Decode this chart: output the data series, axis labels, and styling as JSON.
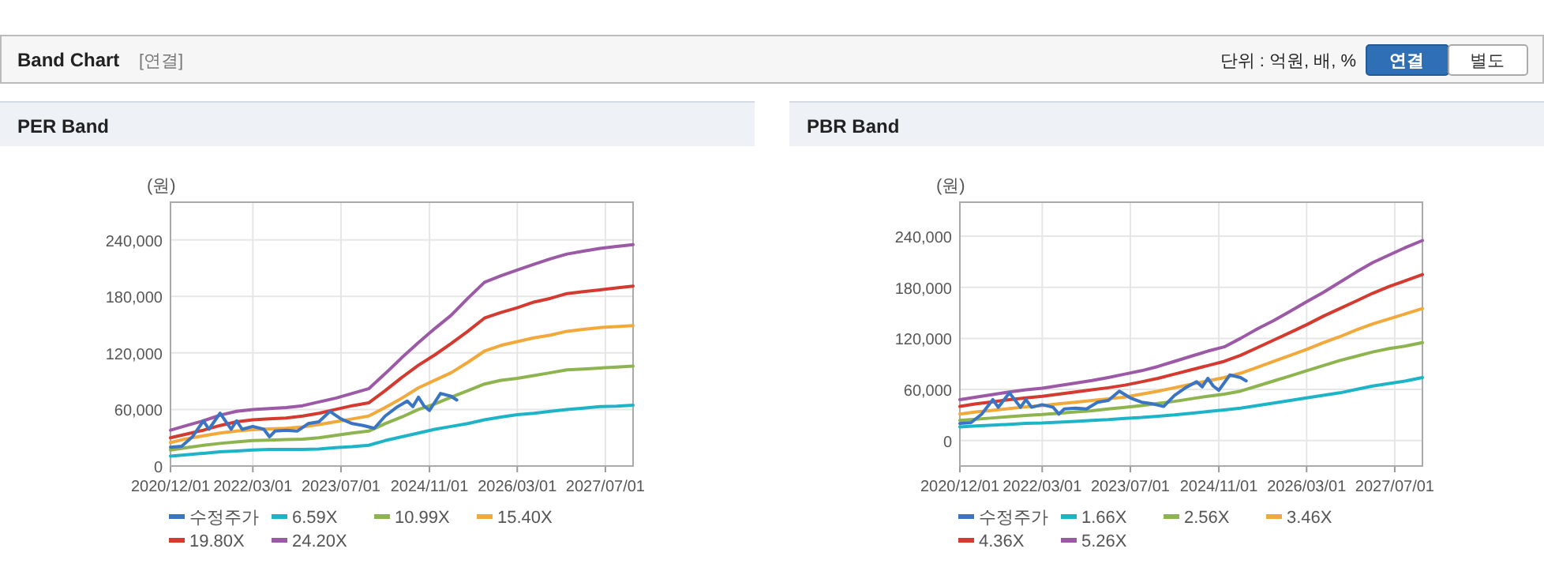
{
  "chart_data": [
    {
      "type": "other",
      "title": "Band Chart",
      "annotations": [
        "[연결]",
        "단위 : 억원, 배, %",
        "연결",
        "별도"
      ]
    },
    {
      "type": "line",
      "title": "PER Band",
      "ylabel": "(원)",
      "xlim": [
        "2020-12-01",
        "2027-12-01"
      ],
      "ylim": [
        0,
        280000
      ],
      "xticks": [
        {
          "value": "2020-12-01",
          "label": "2020/12/01"
        },
        {
          "value": "2022-03-01",
          "label": "2022/03/01"
        },
        {
          "value": "2023-07-01",
          "label": "2023/07/01"
        },
        {
          "value": "2024-11-01",
          "label": "2024/11/01"
        },
        {
          "value": "2026-03-01",
          "label": "2026/03/01"
        },
        {
          "value": "2027-07-01",
          "label": "2027/07/01"
        }
      ],
      "yticks": [
        0,
        {
          "value": 60000,
          "label": "60,000"
        },
        {
          "value": 120000,
          "label": "120,000"
        },
        {
          "value": 180000,
          "label": "180,000"
        },
        {
          "value": 240000,
          "label": "240,000"
        }
      ],
      "grid": true,
      "legend": "bottom",
      "marker": "none",
      "line_style": "solid",
      "x": [
        "2020-12",
        "2021-03",
        "2021-06",
        "2021-09",
        "2021-12",
        "2022-03",
        "2022-06",
        "2022-09",
        "2022-12",
        "2023-03",
        "2023-06",
        "2023-09",
        "2023-12",
        "2024-03",
        "2024-06",
        "2024-09",
        "2024-12",
        "2025-03",
        "2025-06",
        "2025-09",
        "2025-12",
        "2026-03",
        "2026-06",
        "2026-09",
        "2026-12",
        "2027-03",
        "2027-06",
        "2027-09",
        "2027-12"
      ],
      "series": [
        {
          "name": "수정주가",
          "color": "#3a75c4",
          "x": [
            "2020-12",
            "2021-02",
            "2021-04",
            "2021-06",
            "2021-07",
            "2021-09",
            "2021-11",
            "2021-12",
            "2022-01",
            "2022-03",
            "2022-05",
            "2022-06",
            "2022-07",
            "2022-09",
            "2022-11",
            "2023-01",
            "2023-03",
            "2023-05",
            "2023-07",
            "2023-09",
            "2023-11",
            "2024-01",
            "2024-03",
            "2024-05",
            "2024-07",
            "2024-08",
            "2024-09",
            "2024-10",
            "2024-11",
            "2025-01",
            "2025-03",
            "2025-04"
          ],
          "values": [
            20000,
            21000,
            31000,
            48000,
            39000,
            56000,
            39000,
            48000,
            39000,
            42000,
            39000,
            31000,
            37000,
            38000,
            37000,
            45000,
            47000,
            58000,
            50000,
            45000,
            43000,
            40000,
            53000,
            62000,
            69000,
            63000,
            73000,
            64000,
            59000,
            77000,
            74000,
            70000
          ]
        },
        {
          "name": "6.59X",
          "color": "#1eb4c8",
          "values": [
            10500,
            12000,
            13500,
            15000,
            16000,
            17000,
            17500,
            17500,
            17500,
            18000,
            19500,
            20500,
            22000,
            27000,
            31000,
            35000,
            39000,
            42000,
            45000,
            49000,
            52000,
            54500,
            56000,
            58000,
            60000,
            61500,
            63000,
            63500,
            64500
          ]
        },
        {
          "name": "10.99X",
          "color": "#8db44f",
          "values": [
            17000,
            19500,
            22000,
            24000,
            25500,
            27000,
            27500,
            28000,
            28500,
            30000,
            32500,
            35000,
            37000,
            45000,
            52000,
            60000,
            66000,
            73000,
            80000,
            87000,
            91000,
            93000,
            96000,
            99000,
            102000,
            103000,
            104000,
            105000,
            106000
          ]
        },
        {
          "name": "15.40X",
          "color": "#f2a93b",
          "values": [
            25000,
            29000,
            32000,
            35000,
            37000,
            38500,
            39500,
            40000,
            41500,
            44000,
            47000,
            50000,
            53000,
            62000,
            72000,
            83000,
            91000,
            99000,
            110000,
            122000,
            128000,
            132000,
            136000,
            139000,
            143000,
            145000,
            147000,
            148000,
            149000
          ]
        },
        {
          "name": "19.80X",
          "color": "#d43a2f",
          "values": [
            30000,
            34000,
            38000,
            43000,
            47000,
            49000,
            50000,
            51000,
            53000,
            56000,
            60000,
            64000,
            67000,
            80000,
            94000,
            107000,
            118000,
            130000,
            143000,
            157000,
            163000,
            168000,
            174000,
            178000,
            183000,
            185000,
            187000,
            189000,
            191000
          ]
        },
        {
          "name": "24.20X",
          "color": "#9b59a6",
          "values": [
            38000,
            43000,
            48000,
            54000,
            58000,
            60000,
            61000,
            62000,
            64000,
            68000,
            72000,
            77000,
            82000,
            98000,
            115000,
            131000,
            146000,
            160000,
            178000,
            195000,
            202000,
            208000,
            214000,
            220000,
            225000,
            228000,
            231000,
            233000,
            235000
          ]
        }
      ]
    },
    {
      "type": "line",
      "title": "PBR Band",
      "ylabel": "(원)",
      "xlim": [
        "2020-12-01",
        "2027-12-01"
      ],
      "ylim": [
        -30000,
        280000
      ],
      "xticks": [
        {
          "value": "2020-12-01",
          "label": "2020/12/01"
        },
        {
          "value": "2022-03-01",
          "label": "2022/03/01"
        },
        {
          "value": "2023-07-01",
          "label": "2023/07/01"
        },
        {
          "value": "2024-11-01",
          "label": "2024/11/01"
        },
        {
          "value": "2026-03-01",
          "label": "2026/03/01"
        },
        {
          "value": "2027-07-01",
          "label": "2027/07/01"
        }
      ],
      "yticks": [
        0,
        {
          "value": 60000,
          "label": "60,000"
        },
        {
          "value": 120000,
          "label": "120,000"
        },
        {
          "value": 180000,
          "label": "180,000"
        },
        {
          "value": 240000,
          "label": "240,000"
        }
      ],
      "grid": true,
      "legend": "bottom",
      "marker": "none",
      "line_style": "solid",
      "x": [
        "2020-12",
        "2021-03",
        "2021-06",
        "2021-09",
        "2021-12",
        "2022-03",
        "2022-06",
        "2022-09",
        "2022-12",
        "2023-03",
        "2023-06",
        "2023-09",
        "2023-12",
        "2024-03",
        "2024-06",
        "2024-09",
        "2024-12",
        "2025-03",
        "2025-06",
        "2025-09",
        "2025-12",
        "2026-03",
        "2026-06",
        "2026-09",
        "2026-12",
        "2027-03",
        "2027-06",
        "2027-09",
        "2027-12"
      ],
      "series": [
        {
          "name": "수정주가",
          "color": "#3a75c4",
          "x": [
            "2020-12",
            "2021-02",
            "2021-04",
            "2021-06",
            "2021-07",
            "2021-09",
            "2021-11",
            "2021-12",
            "2022-01",
            "2022-03",
            "2022-05",
            "2022-06",
            "2022-07",
            "2022-09",
            "2022-11",
            "2023-01",
            "2023-03",
            "2023-05",
            "2023-07",
            "2023-09",
            "2023-11",
            "2024-01",
            "2024-03",
            "2024-05",
            "2024-07",
            "2024-08",
            "2024-09",
            "2024-10",
            "2024-11",
            "2025-01",
            "2025-03",
            "2025-04"
          ],
          "values": [
            20000,
            21000,
            31000,
            48000,
            39000,
            56000,
            39000,
            48000,
            39000,
            42000,
            39000,
            31000,
            37000,
            38000,
            37000,
            45000,
            47000,
            58000,
            50000,
            45000,
            43000,
            40000,
            53000,
            62000,
            69000,
            63000,
            73000,
            64000,
            59000,
            77000,
            74000,
            70000
          ]
        },
        {
          "name": "1.66X",
          "color": "#1eb4c8",
          "values": [
            16000,
            17000,
            18000,
            19000,
            20000,
            20500,
            21500,
            22500,
            23500,
            24500,
            26000,
            27000,
            28500,
            30000,
            32000,
            34000,
            36000,
            38000,
            41000,
            44000,
            47000,
            50000,
            53000,
            56000,
            60000,
            64000,
            67000,
            70000,
            74000
          ]
        },
        {
          "name": "2.56X",
          "color": "#8db44f",
          "values": [
            23500,
            25000,
            26500,
            28000,
            29500,
            30500,
            32000,
            33500,
            35000,
            37000,
            39000,
            41000,
            43500,
            46000,
            49000,
            52000,
            54500,
            58000,
            64000,
            70000,
            76000,
            82000,
            88000,
            94000,
            99000,
            104000,
            108000,
            111000,
            115000
          ]
        },
        {
          "name": "3.46X",
          "color": "#f2a93b",
          "values": [
            31000,
            33500,
            35500,
            37500,
            39500,
            41000,
            43000,
            45000,
            47000,
            49000,
            51000,
            54500,
            58000,
            62000,
            66000,
            70000,
            74000,
            79000,
            86000,
            93000,
            100000,
            107000,
            115000,
            122000,
            130000,
            137000,
            143000,
            149000,
            155000
          ]
        },
        {
          "name": "4.36X",
          "color": "#d43a2f",
          "values": [
            40000,
            43000,
            45500,
            48000,
            50000,
            52000,
            54500,
            57000,
            59500,
            62000,
            65000,
            69000,
            73000,
            78000,
            83000,
            88000,
            93000,
            100000,
            109000,
            118000,
            127000,
            136000,
            146000,
            155000,
            164000,
            173000,
            181000,
            188000,
            195000
          ]
        },
        {
          "name": "5.26X",
          "color": "#9b59a6",
          "values": [
            48000,
            51000,
            54000,
            57000,
            59500,
            61500,
            64500,
            67500,
            70500,
            74000,
            78000,
            82000,
            87000,
            93000,
            99000,
            105000,
            110000,
            120000,
            131000,
            141000,
            152000,
            163000,
            174000,
            186000,
            198000,
            209000,
            218000,
            227000,
            235000
          ]
        }
      ]
    }
  ]
}
